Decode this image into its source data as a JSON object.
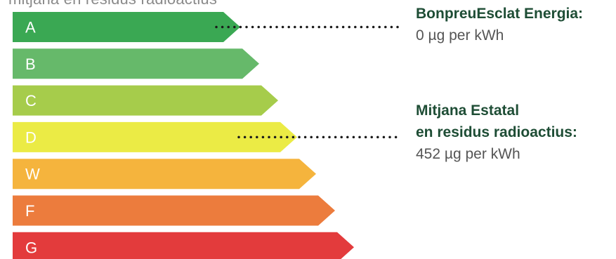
{
  "chart_data": {
    "type": "bar",
    "title": "mitjana en residus radioactius",
    "categories": [
      "A",
      "B",
      "C",
      "D",
      "W",
      "F",
      "G"
    ],
    "colors": [
      "#3aa853",
      "#66b96a",
      "#a6cc4b",
      "#ebeb45",
      "#f5b43d",
      "#ec7c3d",
      "#e33b3c"
    ],
    "annotations": [
      {
        "category": "A",
        "title_lines": [
          "BonpreuEsclat Energia:"
        ],
        "value_text": "0 µg per kWh"
      },
      {
        "category": "D",
        "title_lines": [
          "Mitjana Estatal",
          "en residus radioactius:"
        ],
        "value_text": "452 µg per kWh"
      }
    ]
  }
}
